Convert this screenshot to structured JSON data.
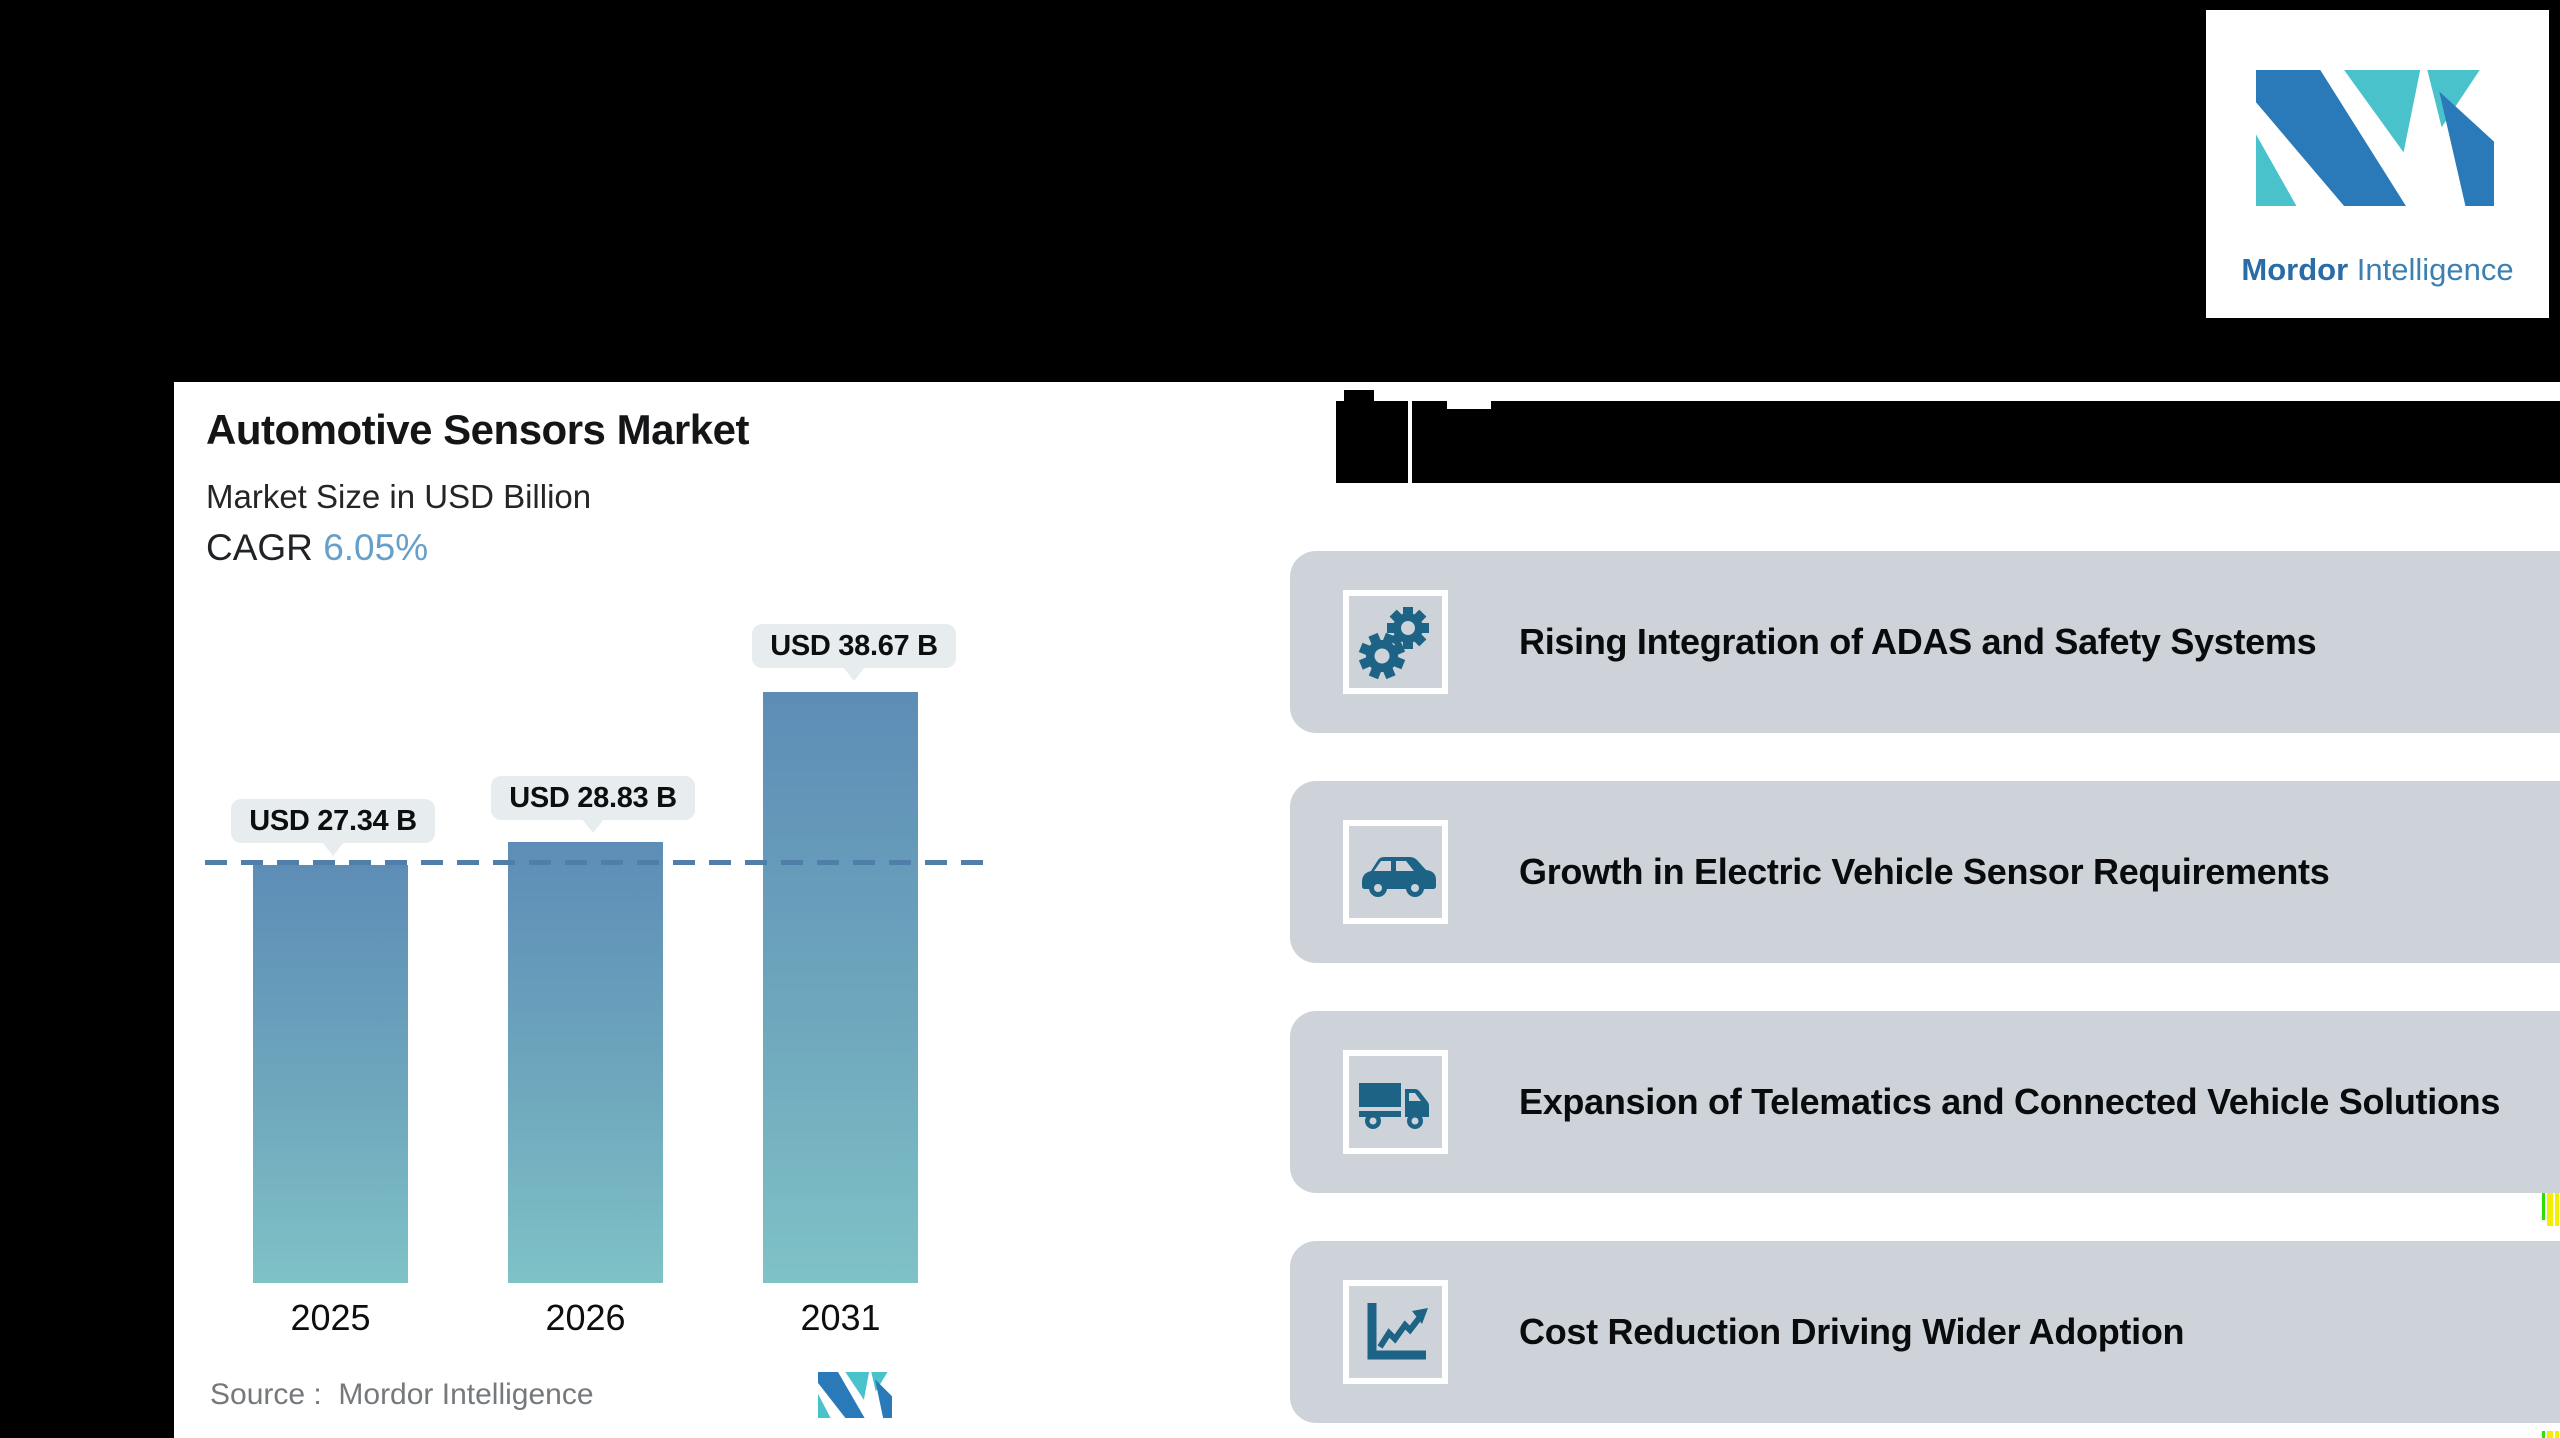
{
  "page": {
    "background": "#000000"
  },
  "logo": {
    "brand_bold": "Mordor",
    "brand_regular": " Intelligence",
    "blue": "#2a79b8",
    "teal": "#49c2cb"
  },
  "chart_panel": {
    "title": "Automotive Sensors Market",
    "subtitle": "Market Size in USD Billion",
    "cagr_label": "CAGR ",
    "cagr_value": "6.05%",
    "cagr_value_color": "#66a0ca",
    "source_line": "Source :  Mordor Intelligence"
  },
  "chart_data": {
    "type": "bar",
    "title": "Automotive Sensors Market",
    "subtitle": "Market Size in USD Billion",
    "cagr": "6.05%",
    "categories": [
      "2025",
      "2026",
      "2031"
    ],
    "values": [
      27.34,
      28.83,
      38.67
    ],
    "value_labels": [
      "USD 27.34 B",
      "USD 28.83 B",
      "USD 38.67 B"
    ],
    "unit": "USD Billion",
    "reference_line": {
      "value": 27.34,
      "style": "dashed",
      "color": "#4f7fa9"
    },
    "bar_gradient_top": "#5d8db6",
    "bar_gradient_bottom": "#7fc2c6",
    "grid": false,
    "legend": false
  },
  "trends": {
    "card_color": "#cdd3d9",
    "icon_color": "#1d6386",
    "items": [
      {
        "icon": "gears",
        "label": "Rising Integration of ADAS and Safety Systems"
      },
      {
        "icon": "car",
        "label": "Growth in Electric Vehicle Sensor Requirements"
      },
      {
        "icon": "truck",
        "label": "Expansion of Telematics and Connected Vehicle Solutions"
      },
      {
        "icon": "line-chart",
        "label": "Cost Reduction Driving Wider Adoption"
      }
    ]
  }
}
